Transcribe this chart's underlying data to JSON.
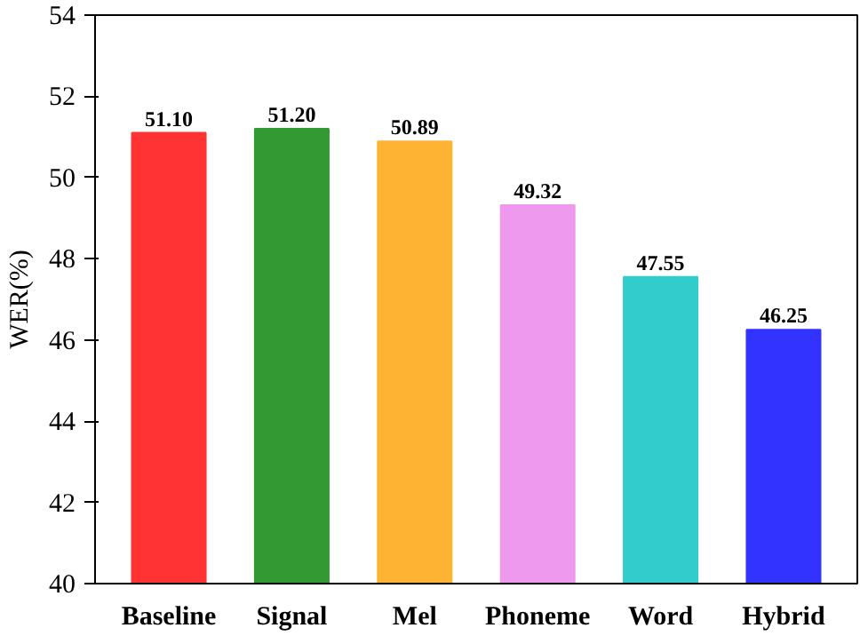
{
  "chart_data": {
    "type": "bar",
    "ylabel": "WER(%)",
    "categories": [
      "Baseline",
      "Signal",
      "Mel",
      "Phoneme",
      "Word",
      "Hybrid"
    ],
    "values": [
      51.1,
      51.2,
      50.89,
      49.32,
      47.55,
      46.25
    ],
    "value_labels": [
      "51.10",
      "51.20",
      "50.89",
      "49.32",
      "47.55",
      "46.25"
    ],
    "colors": [
      "#ff3333",
      "#339933",
      "#ffb333",
      "#ee99ee",
      "#33cccc",
      "#3333ff"
    ],
    "ylim": [
      40,
      54
    ],
    "yticks": [
      40,
      42,
      44,
      46,
      48,
      50,
      52,
      54
    ]
  }
}
